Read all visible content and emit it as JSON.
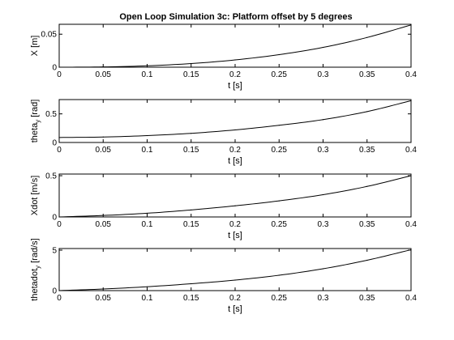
{
  "figure": {
    "title": "Open Loop Simulation 3c: Platform offset by 5 degrees"
  },
  "chart_data": [
    {
      "type": "line",
      "xlabel": "t [s]",
      "ylabel": "X [m]",
      "ylabel_sub": "",
      "ylabel_suffix": "",
      "xlim": [
        0,
        0.4
      ],
      "ylim": [
        0,
        0.065
      ],
      "xticks": [
        "0",
        "0.05",
        "0.1",
        "0.15",
        "0.2",
        "0.25",
        "0.3",
        "0.35",
        "0.4"
      ],
      "yticks": [
        {
          "v": 0,
          "label": "0"
        },
        {
          "v": 0.05,
          "label": "0.05"
        }
      ],
      "x": [
        0,
        0.05,
        0.1,
        0.15,
        0.2,
        0.25,
        0.3,
        0.35,
        0.4
      ],
      "y": [
        0,
        0.0004,
        0.0021,
        0.0055,
        0.011,
        0.019,
        0.03,
        0.045,
        0.064
      ]
    },
    {
      "type": "line",
      "xlabel": "t [s]",
      "ylabel": "theta",
      "ylabel_sub": "y",
      "ylabel_suffix": " [rad]",
      "xlim": [
        0,
        0.4
      ],
      "ylim": [
        0,
        0.75
      ],
      "xticks": [
        "0",
        "0.05",
        "0.1",
        "0.15",
        "0.2",
        "0.25",
        "0.3",
        "0.35",
        "0.4"
      ],
      "yticks": [
        {
          "v": 0,
          "label": "0"
        },
        {
          "v": 0.5,
          "label": "0.5"
        }
      ],
      "x": [
        0,
        0.05,
        0.1,
        0.15,
        0.2,
        0.25,
        0.3,
        0.35,
        0.4
      ],
      "y": [
        0.087,
        0.095,
        0.12,
        0.16,
        0.22,
        0.3,
        0.4,
        0.54,
        0.73
      ]
    },
    {
      "type": "line",
      "xlabel": "t [s]",
      "ylabel": "Xdot [m/s]",
      "ylabel_sub": "",
      "ylabel_suffix": "",
      "xlim": [
        0,
        0.4
      ],
      "ylim": [
        0,
        0.52
      ],
      "xticks": [
        "0",
        "0.05",
        "0.1",
        "0.15",
        "0.2",
        "0.25",
        "0.3",
        "0.35",
        "0.4"
      ],
      "yticks": [
        {
          "v": 0,
          "label": "0"
        },
        {
          "v": 0.5,
          "label": "0.5"
        }
      ],
      "x": [
        0,
        0.05,
        0.1,
        0.15,
        0.2,
        0.25,
        0.3,
        0.35,
        0.4
      ],
      "y": [
        0,
        0.018,
        0.045,
        0.085,
        0.135,
        0.195,
        0.27,
        0.37,
        0.5
      ]
    },
    {
      "type": "line",
      "xlabel": "t [s]",
      "ylabel": "thetadot",
      "ylabel_sub": "y",
      "ylabel_suffix": " [rad/s]",
      "xlim": [
        0,
        0.4
      ],
      "ylim": [
        0,
        5.2
      ],
      "xticks": [
        "0",
        "0.05",
        "0.1",
        "0.15",
        "0.2",
        "0.25",
        "0.3",
        "0.35",
        "0.4"
      ],
      "yticks": [
        {
          "v": 0,
          "label": "0"
        },
        {
          "v": 5,
          "label": "5"
        }
      ],
      "x": [
        0,
        0.05,
        0.1,
        0.15,
        0.2,
        0.25,
        0.3,
        0.35,
        0.4
      ],
      "y": [
        0,
        0.2,
        0.48,
        0.85,
        1.3,
        1.9,
        2.7,
        3.75,
        5.05
      ]
    }
  ]
}
